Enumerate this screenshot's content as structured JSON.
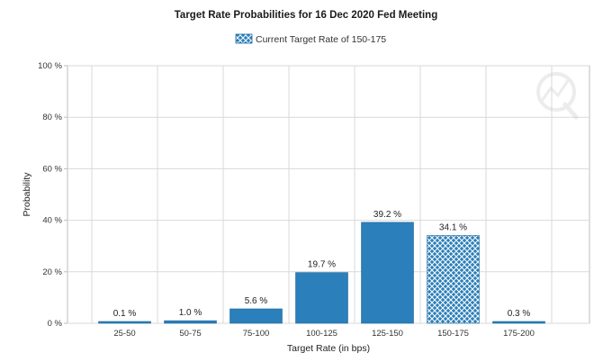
{
  "chart_data": {
    "type": "bar",
    "title": "Target Rate Probabilities for 16 Dec 2020 Fed Meeting",
    "xlabel": "Target Rate (in bps)",
    "ylabel": "Probability",
    "categories": [
      "25-50",
      "50-75",
      "75-100",
      "100-125",
      "125-150",
      "150-175",
      "175-200"
    ],
    "values": [
      0.1,
      1.0,
      5.6,
      19.7,
      39.2,
      34.1,
      0.3
    ],
    "data_labels": [
      "0.1 %",
      "1.0 %",
      "5.6 %",
      "19.7 %",
      "39.2 %",
      "34.1 %",
      "0.3 %"
    ],
    "highlight_category": "150-175",
    "legend": {
      "label": "Current Target Rate of 150-175",
      "placement": "top-center"
    },
    "yticks": [
      0,
      20,
      40,
      60,
      80,
      100
    ],
    "ytick_labels": [
      "0 %",
      "20 %",
      "40 %",
      "60 %",
      "80 %",
      "100 %"
    ],
    "ylim": [
      0,
      100
    ],
    "grid": true,
    "colors": {
      "bar": "#2b7fba",
      "bar_edge": "#1f6aa0",
      "grid": "#d9d9d9",
      "axis": "#bdbdbd"
    }
  }
}
